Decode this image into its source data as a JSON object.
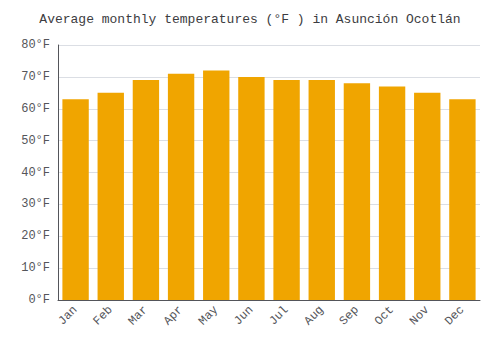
{
  "chart_data": {
    "type": "bar",
    "title": "Average monthly temperatures (°F ) in Asunción Ocotlán",
    "categories": [
      "Jan",
      "Feb",
      "Mar",
      "Apr",
      "May",
      "Jun",
      "Jul",
      "Aug",
      "Sep",
      "Oct",
      "Nov",
      "Dec"
    ],
    "values": [
      63,
      65,
      69,
      71,
      72,
      70,
      69,
      69,
      68,
      67,
      65,
      63
    ],
    "color": "#F0A500",
    "ylim": [
      0,
      80
    ],
    "yticks": [
      {
        "value": 0,
        "label": "0°F"
      },
      {
        "value": 10,
        "label": "10°F"
      },
      {
        "value": 20,
        "label": "20°F"
      },
      {
        "value": 30,
        "label": "30°F"
      },
      {
        "value": 40,
        "label": "40°F"
      },
      {
        "value": 50,
        "label": "50°F"
      },
      {
        "value": 60,
        "label": "60°F"
      },
      {
        "value": 70,
        "label": "70°F"
      },
      {
        "value": 80,
        "label": "80°F"
      }
    ],
    "grid": true
  }
}
